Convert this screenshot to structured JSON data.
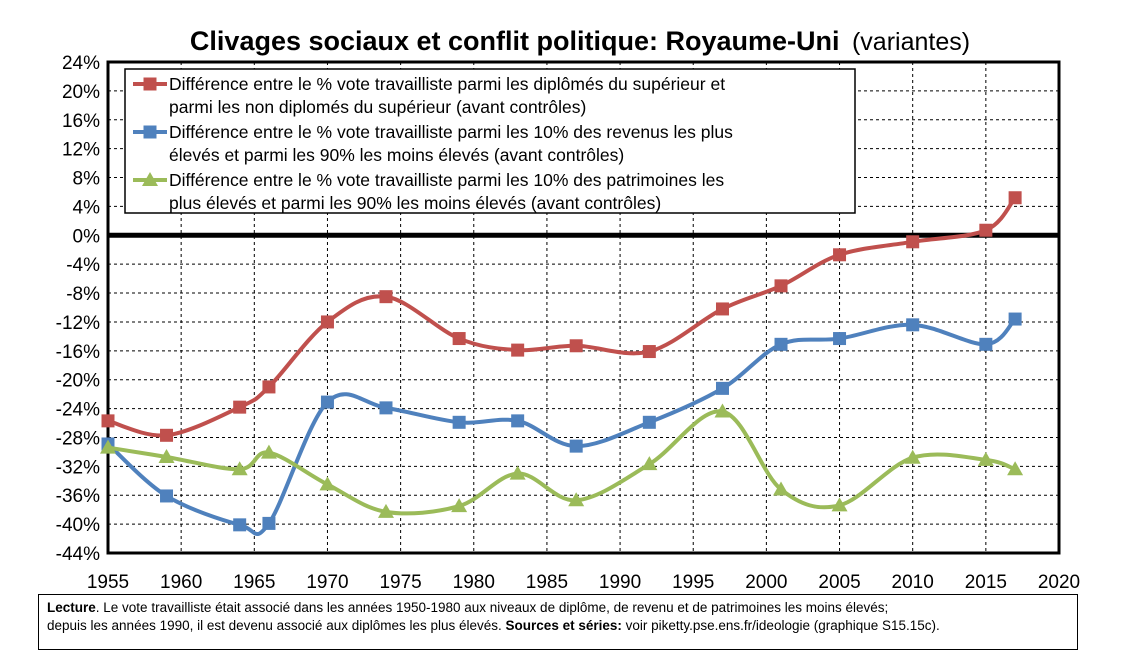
{
  "chart_data": {
    "type": "line",
    "title": "Clivages sociaux et conflit politique: Royaume-Uni",
    "subtitle": "(variantes)",
    "xlabel": "",
    "ylabel": "",
    "xlim": [
      1955,
      2020
    ],
    "ylim": [
      -44,
      24
    ],
    "x_ticks": [
      "1955",
      "1960",
      "1965",
      "1970",
      "1975",
      "1980",
      "1985",
      "1990",
      "1995",
      "2000",
      "2005",
      "2010",
      "2015",
      "2020"
    ],
    "y_ticks": [
      "24%",
      "20%",
      "16%",
      "12%",
      "8%",
      "4%",
      "0%",
      "-4%",
      "-8%",
      "-12%",
      "-16%",
      "-20%",
      "-24%",
      "-28%",
      "-32%",
      "-36%",
      "-40%",
      "-44%"
    ],
    "grid": true,
    "legend_position": "top-left",
    "series": [
      {
        "name": "Différence entre le % vote travailliste parmi les diplômés du supérieur et parmi les non diplomés du supérieur (avant contrôles)",
        "legend_lines": [
          "Différence entre le % vote travailliste parmi les diplômés du supérieur et",
          "parmi les non diplomés du supérieur (avant contrôles)"
        ],
        "color": "#c0504d",
        "marker": "square",
        "x": [
          1955,
          1959,
          1964,
          1966,
          1970,
          1974,
          1979,
          1983,
          1987,
          1992,
          1997,
          2001,
          2005,
          2010,
          2015,
          2017
        ],
        "y": [
          -25.7,
          -27.7,
          -23.8,
          -21.0,
          -12.0,
          -8.5,
          -14.3,
          -15.9,
          -15.3,
          -16.1,
          -10.2,
          -7.0,
          -2.7,
          -0.9,
          0.7,
          5.2
        ]
      },
      {
        "name": "Différence entre le % vote travailliste parmi les 10% des revenus les plus élevés et parmi les 90% les moins élevés (avant contrôles)",
        "legend_lines": [
          "Différence entre le % vote travailliste parmi les 10% des revenus les plus",
          "élevés et parmi les 90% les moins élevés (avant contrôles)"
        ],
        "color": "#4f81bd",
        "marker": "square",
        "x": [
          1955,
          1959,
          1964,
          1966,
          1970,
          1974,
          1979,
          1983,
          1987,
          1992,
          1997,
          2001,
          2005,
          2010,
          2015,
          2017
        ],
        "y": [
          -28.9,
          -36.1,
          -40.1,
          -39.9,
          -23.1,
          -23.9,
          -25.9,
          -25.7,
          -29.2,
          -25.9,
          -21.2,
          -15.1,
          -14.3,
          -12.4,
          -15.1,
          -11.6
        ]
      },
      {
        "name": "Différence entre le % vote travailliste parmi les 10% des patrimoines les plus élevés et parmi les 90% les moins élevés (avant contrôles)",
        "legend_lines": [
          "Différence entre le % vote travailliste parmi les 10% des patrimoines les",
          "plus élevés et parmi les 90% les moins élevés (avant contrôles)"
        ],
        "color": "#9bbb59",
        "marker": "triangle",
        "x": [
          1955,
          1959,
          1964,
          1966,
          1970,
          1974,
          1979,
          1983,
          1987,
          1992,
          1997,
          2001,
          2005,
          2010,
          2015,
          2017
        ],
        "y": [
          -29.4,
          -30.7,
          -32.4,
          -30.1,
          -34.5,
          -38.3,
          -37.5,
          -33.0,
          -36.7,
          -31.7,
          -24.4,
          -35.2,
          -37.4,
          -30.8,
          -31.1,
          -32.4
        ]
      }
    ]
  },
  "footer": {
    "lecture_label": "Lecture",
    "line1": ". Le vote travailliste était associé dans les années 1950-1980 aux niveaux de diplôme, de revenu et de patrimoines les moins élevés;",
    "line2": "depuis les années 1990, il est devenu associé aux diplômes les plus élevés.",
    "sources_label": "Sources et séries:",
    "sources_text": "voir piketty.pse.ens.fr/ideologie (graphique S15.15c)."
  }
}
